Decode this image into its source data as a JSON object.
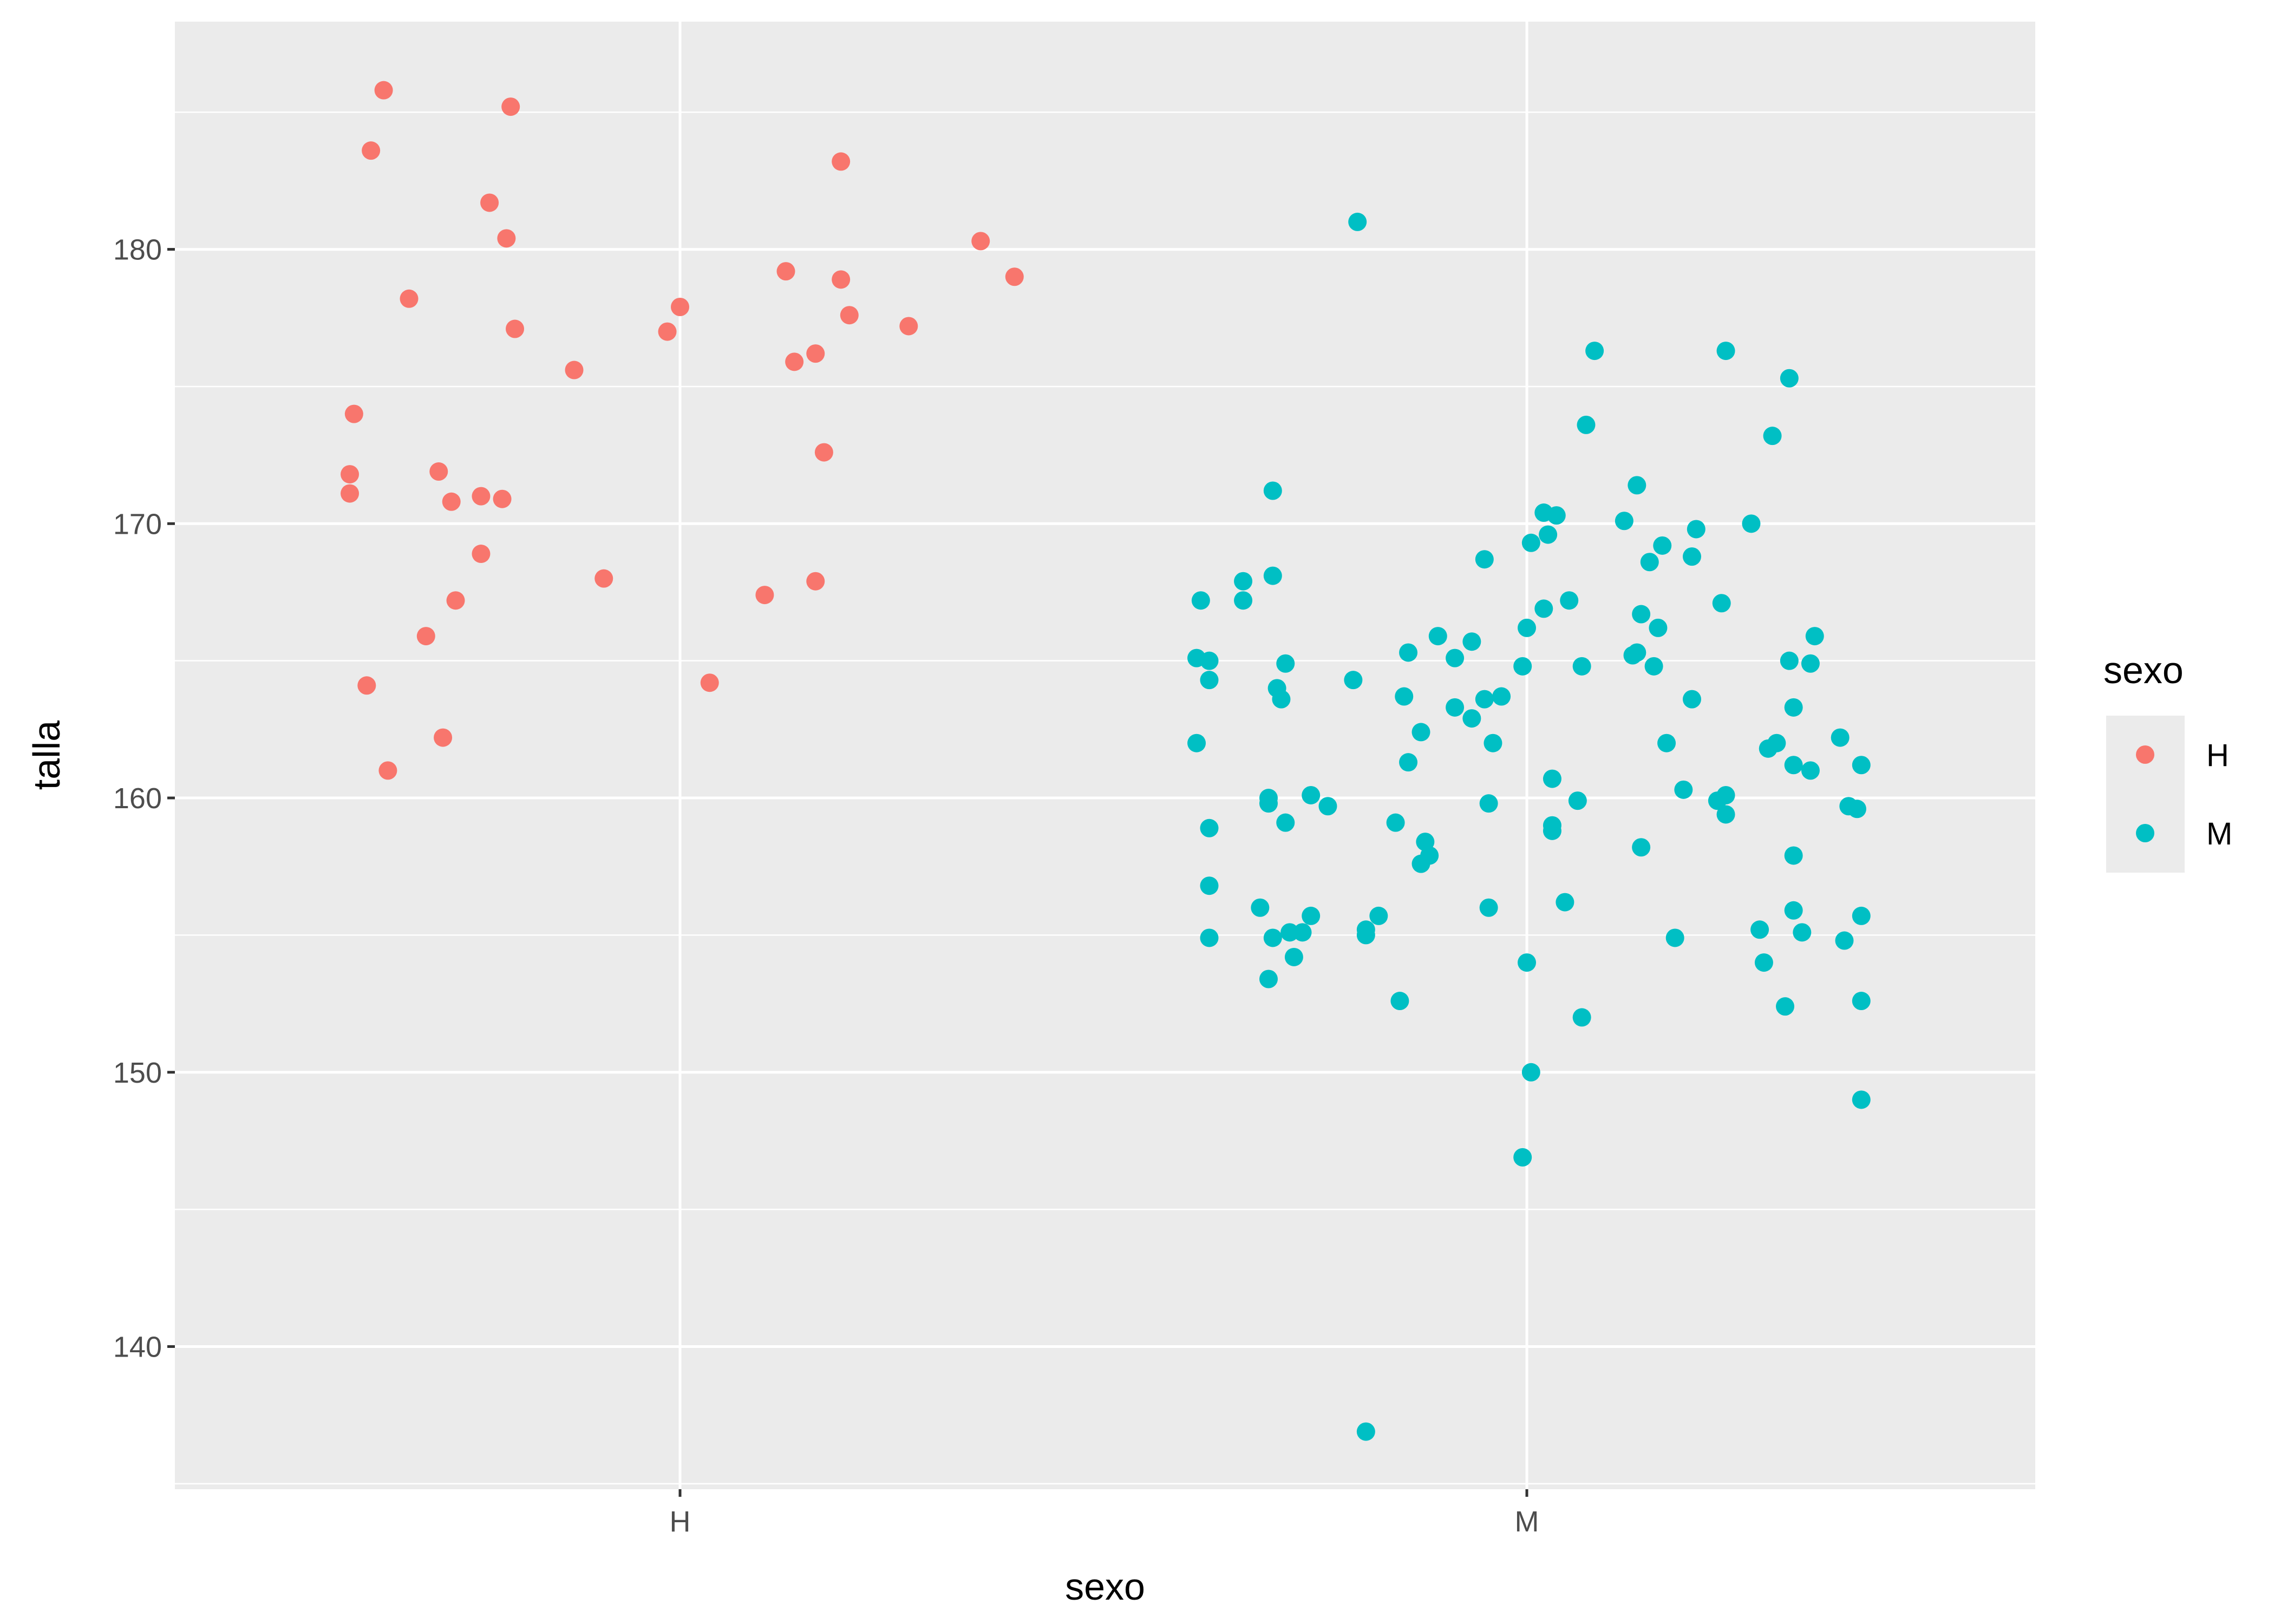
{
  "chart_data": {
    "type": "scatter",
    "title": "",
    "xlabel": "sexo",
    "ylabel": "talla",
    "categories": [
      "H",
      "M"
    ],
    "ylim": [
      134.8,
      188.3
    ],
    "y_ticks": [
      140,
      150,
      160,
      170,
      180
    ],
    "grid": true,
    "background": "#EBEBEB",
    "legend": {
      "title": "sexo",
      "position": "right",
      "entries": [
        {
          "label": "H",
          "color": "#F8766D"
        },
        {
          "label": "M",
          "color": "#00BFC4"
        }
      ]
    },
    "series": [
      {
        "name": "H",
        "color": "#F8766D",
        "points": [
          [
            -0.35,
            185.8
          ],
          [
            -0.365,
            183.6
          ],
          [
            -0.2,
            185.2
          ],
          [
            -0.225,
            181.7
          ],
          [
            -0.205,
            180.4
          ],
          [
            0.19,
            183.2
          ],
          [
            0.355,
            180.3
          ],
          [
            0.395,
            179.0
          ],
          [
            0.125,
            179.2
          ],
          [
            0.19,
            178.9
          ],
          [
            -0.32,
            178.2
          ],
          [
            0.0,
            177.9
          ],
          [
            -0.195,
            177.1
          ],
          [
            -0.015,
            177.0
          ],
          [
            0.2,
            177.6
          ],
          [
            0.27,
            177.2
          ],
          [
            -0.125,
            175.6
          ],
          [
            0.135,
            175.9
          ],
          [
            0.16,
            176.2
          ],
          [
            -0.385,
            174.0
          ],
          [
            0.17,
            172.6
          ],
          [
            -0.39,
            171.8
          ],
          [
            -0.39,
            171.1
          ],
          [
            -0.285,
            171.9
          ],
          [
            -0.27,
            170.8
          ],
          [
            -0.235,
            171.0
          ],
          [
            -0.21,
            170.9
          ],
          [
            -0.235,
            168.9
          ],
          [
            -0.09,
            168.0
          ],
          [
            0.16,
            167.9
          ],
          [
            -0.265,
            167.2
          ],
          [
            0.1,
            167.4
          ],
          [
            -0.3,
            165.9
          ],
          [
            -0.37,
            164.1
          ],
          [
            0.035,
            164.2
          ],
          [
            -0.28,
            162.2
          ],
          [
            -0.345,
            161.0
          ]
        ]
      },
      {
        "name": "M",
        "color": "#00BFC4",
        "points": [
          [
            -0.2,
            181.0
          ],
          [
            -0.19,
            136.9
          ],
          [
            0.08,
            176.3
          ],
          [
            0.235,
            176.3
          ],
          [
            0.31,
            175.3
          ],
          [
            0.07,
            173.6
          ],
          [
            0.29,
            173.2
          ],
          [
            -0.3,
            171.2
          ],
          [
            0.13,
            171.4
          ],
          [
            0.02,
            170.4
          ],
          [
            0.035,
            170.3
          ],
          [
            0.025,
            169.6
          ],
          [
            0.115,
            170.1
          ],
          [
            0.265,
            170.0
          ],
          [
            0.2,
            169.8
          ],
          [
            0.005,
            169.3
          ],
          [
            0.16,
            169.2
          ],
          [
            -0.05,
            168.7
          ],
          [
            0.145,
            168.6
          ],
          [
            0.195,
            168.8
          ],
          [
            -0.3,
            168.1
          ],
          [
            -0.335,
            167.9
          ],
          [
            -0.385,
            167.2
          ],
          [
            -0.335,
            167.2
          ],
          [
            0.05,
            167.2
          ],
          [
            0.23,
            167.1
          ],
          [
            0.135,
            166.7
          ],
          [
            0.02,
            166.9
          ],
          [
            0.0,
            166.2
          ],
          [
            0.155,
            166.2
          ],
          [
            -0.105,
            165.9
          ],
          [
            -0.065,
            165.7
          ],
          [
            0.34,
            165.9
          ],
          [
            -0.39,
            165.1
          ],
          [
            -0.375,
            165.0
          ],
          [
            -0.285,
            164.9
          ],
          [
            -0.14,
            165.3
          ],
          [
            -0.085,
            165.1
          ],
          [
            0.125,
            165.2
          ],
          [
            0.13,
            165.3
          ],
          [
            0.31,
            165.0
          ],
          [
            0.335,
            164.9
          ],
          [
            -0.005,
            164.8
          ],
          [
            0.065,
            164.8
          ],
          [
            0.15,
            164.8
          ],
          [
            -0.375,
            164.3
          ],
          [
            -0.295,
            164.0
          ],
          [
            -0.29,
            163.6
          ],
          [
            -0.205,
            164.3
          ],
          [
            -0.145,
            163.7
          ],
          [
            -0.085,
            163.3
          ],
          [
            -0.05,
            163.6
          ],
          [
            -0.03,
            163.7
          ],
          [
            0.195,
            163.6
          ],
          [
            0.315,
            163.3
          ],
          [
            -0.125,
            162.4
          ],
          [
            -0.065,
            162.9
          ],
          [
            -0.04,
            162.0
          ],
          [
            0.165,
            162.0
          ],
          [
            0.285,
            161.8
          ],
          [
            0.295,
            162.0
          ],
          [
            0.37,
            162.2
          ],
          [
            -0.39,
            162.0
          ],
          [
            -0.14,
            161.3
          ],
          [
            0.315,
            161.2
          ],
          [
            0.335,
            161.0
          ],
          [
            0.395,
            161.2
          ],
          [
            0.03,
            160.7
          ],
          [
            -0.305,
            160.0
          ],
          [
            -0.305,
            159.8
          ],
          [
            -0.255,
            160.1
          ],
          [
            -0.235,
            159.7
          ],
          [
            -0.045,
            159.8
          ],
          [
            0.06,
            159.9
          ],
          [
            0.185,
            160.3
          ],
          [
            0.225,
            159.9
          ],
          [
            0.235,
            160.1
          ],
          [
            0.235,
            159.4
          ],
          [
            0.38,
            159.7
          ],
          [
            0.39,
            159.6
          ],
          [
            -0.375,
            158.9
          ],
          [
            -0.285,
            159.1
          ],
          [
            -0.155,
            159.1
          ],
          [
            -0.12,
            158.4
          ],
          [
            -0.115,
            157.9
          ],
          [
            0.03,
            159.0
          ],
          [
            0.03,
            158.8
          ],
          [
            0.135,
            158.2
          ],
          [
            0.315,
            157.9
          ],
          [
            -0.375,
            156.8
          ],
          [
            -0.315,
            156.0
          ],
          [
            -0.255,
            155.7
          ],
          [
            -0.175,
            155.7
          ],
          [
            -0.125,
            157.6
          ],
          [
            -0.045,
            156.0
          ],
          [
            0.045,
            156.2
          ],
          [
            0.315,
            155.9
          ],
          [
            0.395,
            155.7
          ],
          [
            -0.375,
            154.9
          ],
          [
            -0.3,
            154.9
          ],
          [
            -0.28,
            155.1
          ],
          [
            -0.265,
            155.1
          ],
          [
            -0.19,
            155.0
          ],
          [
            -0.19,
            155.2
          ],
          [
            0.175,
            154.9
          ],
          [
            0.275,
            155.2
          ],
          [
            0.325,
            155.1
          ],
          [
            0.375,
            154.8
          ],
          [
            -0.275,
            154.2
          ],
          [
            0.0,
            154.0
          ],
          [
            0.28,
            154.0
          ],
          [
            -0.305,
            153.4
          ],
          [
            -0.15,
            152.6
          ],
          [
            0.065,
            152.0
          ],
          [
            0.305,
            152.4
          ],
          [
            0.395,
            152.6
          ],
          [
            0.005,
            150.0
          ],
          [
            0.395,
            149.0
          ],
          [
            -0.005,
            146.9
          ]
        ]
      }
    ]
  }
}
